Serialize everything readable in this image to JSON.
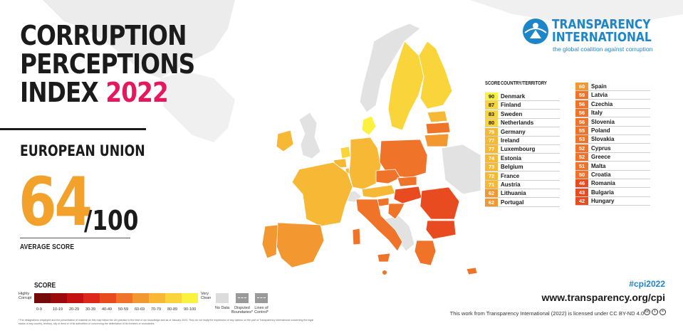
{
  "title": {
    "line1": "CORRUPTION",
    "line2": "PERCEPTIONS",
    "line3": "INDEX",
    "year": "2022"
  },
  "region": "EUROPEAN UNION",
  "average": {
    "value": "64",
    "denominator": "/100",
    "label": "AVERAGE SCORE"
  },
  "legend": {
    "title": "SCORE",
    "highly_corrupt": "Highly Corrupt",
    "very_clean": "Very Clean",
    "ranges": [
      {
        "label": "0-9",
        "color": "#740a0a"
      },
      {
        "label": "10-19",
        "color": "#9c0b0b"
      },
      {
        "label": "20-29",
        "color": "#c3120f"
      },
      {
        "label": "30-39",
        "color": "#dd2718"
      },
      {
        "label": "40-49",
        "color": "#e94b20"
      },
      {
        "label": "50-59",
        "color": "#ef7329"
      },
      {
        "label": "60-69",
        "color": "#f39730"
      },
      {
        "label": "70-79",
        "color": "#f7b935"
      },
      {
        "label": "80-89",
        "color": "#f9d53b"
      },
      {
        "label": "90-100",
        "color": "#fbf13f"
      }
    ],
    "no_data": "No Data",
    "disputed": "Disputed Boundaries*",
    "lines_of_control": "Lines of Control*"
  },
  "disclaimer": "*The designations employed and the presentation of material on this map follow the UN practice to the best of our knowledge and as of January 2023. They do not imply the expression of any opinion on the part of Transparency International concerning the legal status of any country, territory, city or area or of its authorities or concerning the delimitation of its frontiers or boundaries.",
  "logo": {
    "line1": "TRANSPARENCY",
    "line2": "INTERNATIONAL",
    "tagline": "the global coalition against corruption",
    "color": "#1e86c8"
  },
  "table": {
    "header_score": "SCORE",
    "header_country": "COUNTRY/TERRITORY",
    "left": [
      {
        "score": "90",
        "country": "Denmark",
        "color": "#fbf13f"
      },
      {
        "score": "87",
        "country": "Finland",
        "color": "#f9d53b"
      },
      {
        "score": "83",
        "country": "Sweden",
        "color": "#f9d53b"
      },
      {
        "score": "80",
        "country": "Netherlands",
        "color": "#f9d53b"
      },
      {
        "score": "79",
        "country": "Germany",
        "color": "#f7b935"
      },
      {
        "score": "77",
        "country": "Ireland",
        "color": "#f7b935"
      },
      {
        "score": "77",
        "country": "Luxembourg",
        "color": "#f7b935"
      },
      {
        "score": "74",
        "country": "Estonia",
        "color": "#f7b935"
      },
      {
        "score": "73",
        "country": "Belgium",
        "color": "#f7b935"
      },
      {
        "score": "72",
        "country": "France",
        "color": "#f7b935"
      },
      {
        "score": "71",
        "country": "Austria",
        "color": "#f7b935"
      },
      {
        "score": "62",
        "country": "Lithuania",
        "color": "#f39730"
      },
      {
        "score": "62",
        "country": "Portugal",
        "color": "#f39730"
      }
    ],
    "right": [
      {
        "score": "60",
        "country": "Spain",
        "color": "#f39730"
      },
      {
        "score": "59",
        "country": "Latvia",
        "color": "#ef7329"
      },
      {
        "score": "56",
        "country": "Czechia",
        "color": "#ef7329"
      },
      {
        "score": "56",
        "country": "Italy",
        "color": "#ef7329"
      },
      {
        "score": "56",
        "country": "Slovenia",
        "color": "#ef7329"
      },
      {
        "score": "55",
        "country": "Poland",
        "color": "#ef7329"
      },
      {
        "score": "53",
        "country": "Slovakia",
        "color": "#ef7329"
      },
      {
        "score": "52",
        "country": "Cyprus",
        "color": "#ef7329"
      },
      {
        "score": "52",
        "country": "Greece",
        "color": "#ef7329"
      },
      {
        "score": "51",
        "country": "Malta",
        "color": "#ef7329"
      },
      {
        "score": "50",
        "country": "Croatia",
        "color": "#ef7329"
      },
      {
        "score": "46",
        "country": "Romania",
        "color": "#e94b20"
      },
      {
        "score": "43",
        "country": "Bulgaria",
        "color": "#e94b20"
      },
      {
        "score": "42",
        "country": "Hungary",
        "color": "#e94b20"
      }
    ]
  },
  "footer": {
    "hashtag": "#cpi2022",
    "url": "www.transparency.org/cpi",
    "license": "This work from Transparency International (2022) is licensed under CC BY-ND 4.0"
  }
}
